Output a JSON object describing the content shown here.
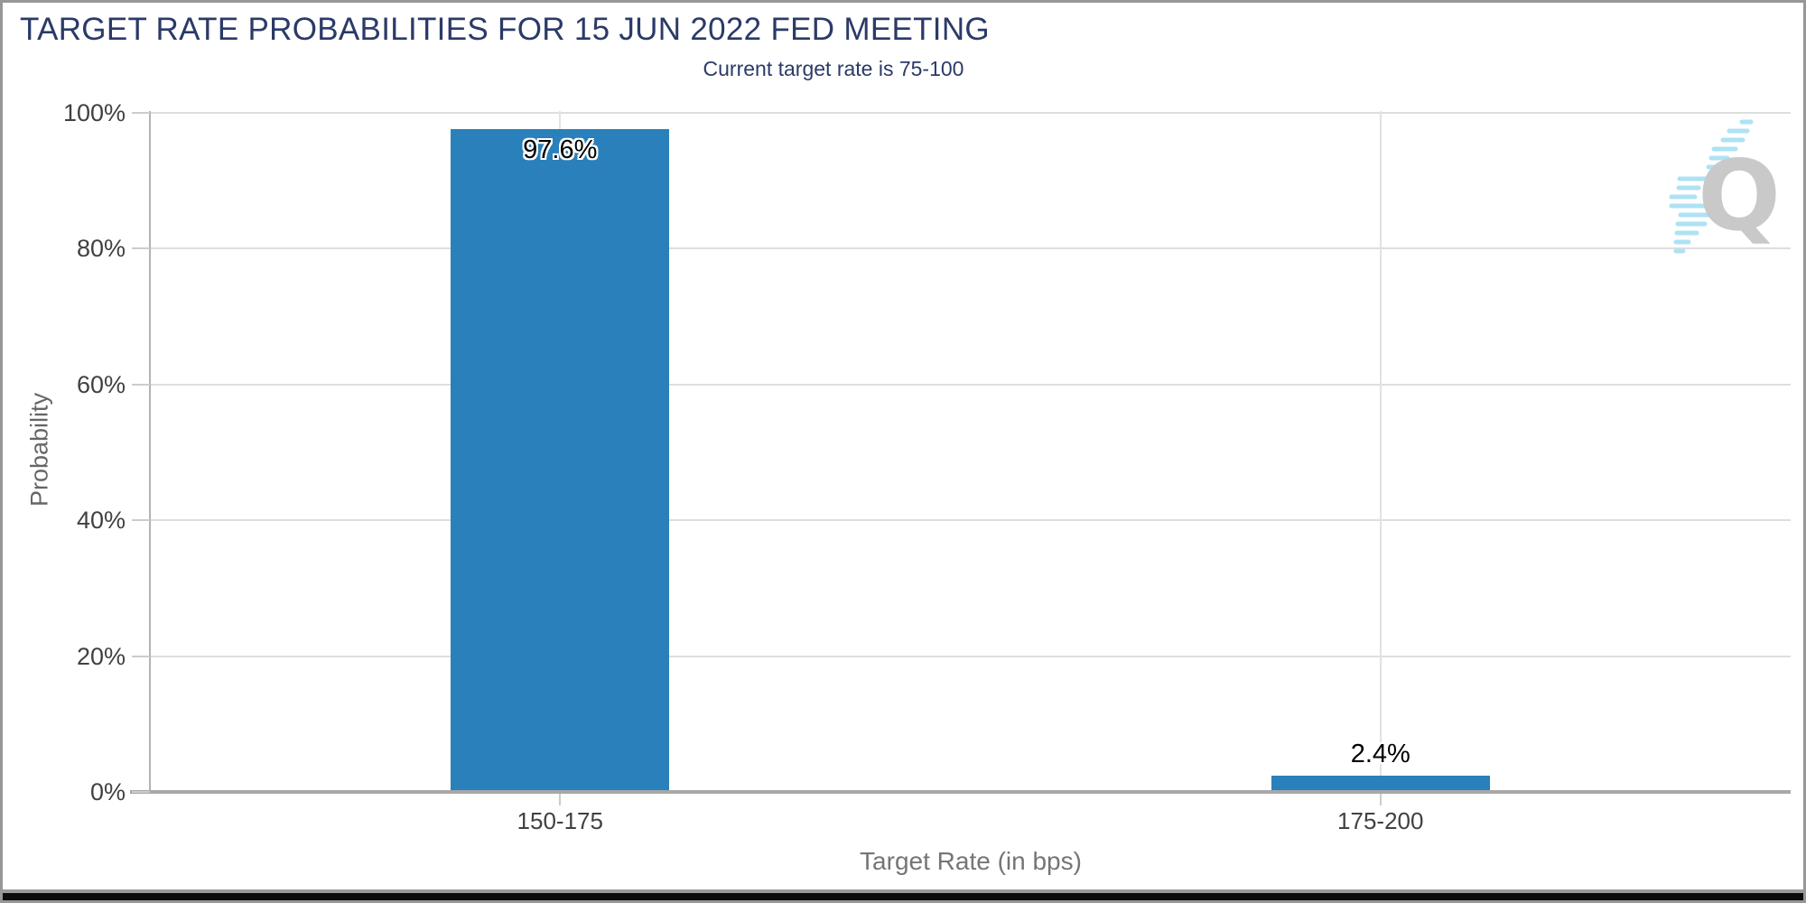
{
  "header": {
    "title": "TARGET RATE PROBABILITIES FOR 15 JUN 2022 FED MEETING",
    "subtitle": "Current target rate is 75-100"
  },
  "chart_data": {
    "type": "bar",
    "title": "TARGET RATE PROBABILITIES FOR 15 JUN 2022 FED MEETING",
    "subtitle": "Current target rate is 75-100",
    "categories": [
      "150-175",
      "175-200"
    ],
    "values": [
      97.6,
      2.4
    ],
    "value_labels": [
      "97.6%",
      "2.4%"
    ],
    "xlabel": "Target Rate (in bps)",
    "ylabel": "Probability",
    "ylim": [
      0,
      100
    ],
    "yticks": [
      0,
      20,
      40,
      60,
      80,
      100
    ],
    "ytick_labels": [
      "0%",
      "20%",
      "40%",
      "60%",
      "80%",
      "100%"
    ],
    "grid": true,
    "legend": "none"
  },
  "colors": {
    "bar": "#2a80ba",
    "navy": "#2b3a67",
    "gridline": "#dedede",
    "axis_line": "#a8a8a8",
    "tick_label": "#414141",
    "axis_title_gray": "#757575",
    "logo_gray": "#c9c9c9",
    "logo_blue": "#aee2f4"
  },
  "branding": {
    "logo_letter": "Q"
  }
}
